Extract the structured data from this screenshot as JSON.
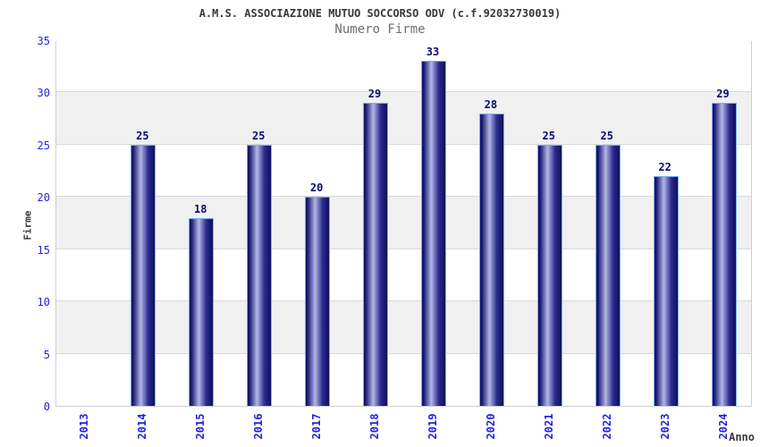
{
  "chart_data": {
    "type": "bar",
    "title": "A.M.S. ASSOCIAZIONE MUTUO SOCCORSO ODV (c.f.92032730019)",
    "subtitle": "Numero Firme",
    "xlabel": "Anno",
    "ylabel": "Firme",
    "categories": [
      "2013",
      "2014",
      "2015",
      "2016",
      "2017",
      "2018",
      "2019",
      "2020",
      "2021",
      "2022",
      "2023",
      "2024"
    ],
    "values": [
      null,
      25,
      18,
      25,
      20,
      29,
      33,
      28,
      25,
      25,
      22,
      29
    ],
    "ylim": [
      0,
      35
    ],
    "yticks": [
      0,
      5,
      10,
      15,
      20,
      25,
      30,
      35
    ],
    "grid": "horizontal-bands",
    "legend": "none",
    "colors": {
      "bar_edge_dark": "#16166e",
      "bar_darkest": "#101058",
      "bar_mid_dark": "#2a2a90",
      "bar_light": "#b2b7e6",
      "bar_border": "#7aacee",
      "tick_label": "#2222dd",
      "value_label": "#0a0a78",
      "title": "#383838",
      "subtitle": "#6e6e6e",
      "band": "#f0f0f0",
      "gridline": "#d9d9d9",
      "plot_border": "#cfcfcf"
    }
  }
}
